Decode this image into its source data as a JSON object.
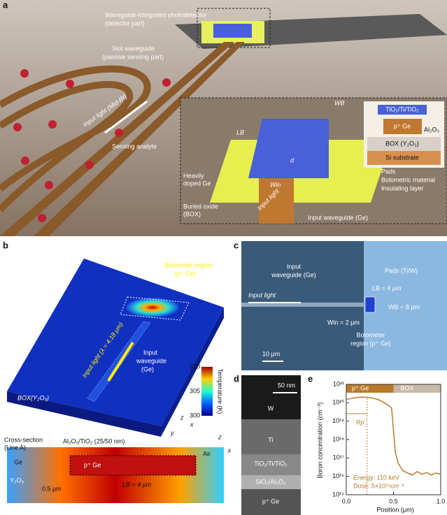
{
  "panel_a": {
    "label": "a",
    "detector_title": "Waveguide-integrated photodetector",
    "detector_sub": "(detector part)",
    "slot_title": "Slot waveguide",
    "slot_sub": "(passive sensing part)",
    "input_light": "Input light (Mid-IR)",
    "analyte": "Sensing analyte",
    "wb": "WB",
    "lb": "LB",
    "d": "d",
    "win": "Win",
    "heavily": "Heavily",
    "doped_ge": "doped Ge",
    "input_light_2": "Input light",
    "box1": "Buried oxide",
    "box2": "(BOX)",
    "input_wg": "Input waveguide (Ge)",
    "pads": "Pads",
    "bolometric": "Bolometric material",
    "insulating": "Insulating layer",
    "inset_tio": "TiO₂/Ti/TiO₂",
    "inset_pge": "p⁺ Ge",
    "inset_al": "Al₂O₃",
    "inset_box": "BOX (Y₂O₃)",
    "inset_si": "Si substrate"
  },
  "panel_b": {
    "label": "b",
    "bolometer": "Bolometer region",
    "bolometer_sub": "(p⁺ Ge)",
    "input_light": "Input light (λ = 4.18 μm)",
    "wg1": "Input",
    "wg2": "waveguide",
    "wg3": "(Ge)",
    "box": "BOX(Y₂O₃)",
    "cb_max": "310",
    "cb_mid": "305",
    "cb_min": "300",
    "cb_title": "Temperature (K)",
    "ax_z": "z",
    "ax_y": "y",
    "ax_x": "x",
    "cs1": "Cross-section",
    "cs2": "(Line A)",
    "coating": "Al₂O₃/TiO₂ (25/50 nm)",
    "air": "Air",
    "ge": "Ge",
    "pge": "p⁺ Ge",
    "y2o3": "Y₂O₃",
    "w05": "0.5 μm",
    "lb": "LB = 4 μm",
    "ax_z2": "z",
    "ax_x2": "x"
  },
  "panel_c": {
    "label": "c",
    "wg1": "Input",
    "wg2": "waveguide (Ge)",
    "pads": "Pads (Ti/W)",
    "input_light": "Input light",
    "lb": "LB = 4 μm",
    "wb": "WB = 8 μm",
    "win": "Win = 2 μm",
    "bolo1": "Bolometer",
    "bolo2": "region (p⁺ Ge)",
    "scale": "10 μm"
  },
  "panel_d": {
    "label": "d",
    "scale": "50 nm",
    "w": "W",
    "ti": "Ti",
    "tio": "TiO₂/Ti/TiO₂",
    "sio": "SiO₂/Al₂O₃",
    "pge": "p⁺ Ge"
  },
  "chart_data": {
    "type": "line",
    "panel_label": "e",
    "x_label": "Position (μm)",
    "y_label": "Boron concentration (cm⁻³)",
    "log_y": true,
    "x": [
      0,
      0.05,
      0.1,
      0.15,
      0.2,
      0.25,
      0.3,
      0.35,
      0.4,
      0.45,
      0.48,
      0.5,
      0.52,
      0.55,
      0.6,
      0.65,
      0.7,
      0.75,
      0.8,
      0.85,
      0.9,
      0.95,
      1.0
    ],
    "series": [
      {
        "name": "Boron",
        "color": "#b87a2a",
        "values": [
          1.5e+20,
          1.7e+20,
          1.9e+20,
          2e+20,
          2e+20,
          1.9e+20,
          1.7e+20,
          1.4e+20,
          1e+20,
          7e+19,
          5e+19,
          3e+18,
          2e+17,
          5e+16,
          2e+16,
          1.5e+16,
          1.2e+16,
          1.8e+16,
          1.3e+16,
          1.6e+16,
          1.2e+16,
          1.5e+16,
          1.3e+16
        ]
      }
    ],
    "xlim": [
      0,
      1
    ],
    "xticks": [
      {
        "value": 0,
        "label": "0.0"
      },
      0.5,
      {
        "value": 1,
        "label": "1.0"
      }
    ],
    "ylim": [
      1000000000000000.0,
      1e+21
    ],
    "yticks": [
      {
        "value": 1000000000000000.0,
        "label": "10¹⁵"
      },
      {
        "value": 1e+16,
        "label": "10¹⁶"
      },
      {
        "value": 1e+17,
        "label": "10¹⁷"
      },
      {
        "value": 1e+18,
        "label": "10¹⁸"
      },
      {
        "value": 1e+19,
        "label": "10¹⁹"
      },
      {
        "value": 1e+20,
        "label": "10²⁰"
      },
      {
        "value": 1e+21,
        "label": "10²¹"
      }
    ],
    "annotations": {
      "pge": "p⁺ Ge",
      "box": "BOX",
      "rp": "Rp",
      "energy": "Energy: 110 keV",
      "dose": "Dose: 5×10¹⁵cm⁻²"
    }
  }
}
